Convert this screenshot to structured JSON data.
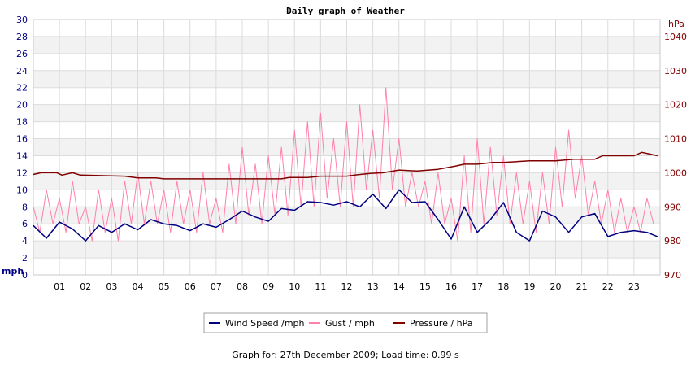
{
  "chart_data": {
    "type": "line",
    "title": "Daily graph of Weather",
    "left_axis": {
      "unit": "mph",
      "ylim": [
        0,
        30
      ],
      "ticks": [
        0,
        2,
        4,
        6,
        8,
        10,
        12,
        14,
        16,
        18,
        20,
        22,
        24,
        26,
        28,
        30
      ]
    },
    "right_axis": {
      "unit": "hPa",
      "ylim": [
        970,
        1045
      ],
      "ticks": [
        970,
        980,
        990,
        1000,
        1010,
        1020,
        1030,
        1040
      ]
    },
    "x_axis": {
      "unit": "hour",
      "xlim": [
        0,
        24
      ],
      "tick_labels": [
        "01",
        "02",
        "03",
        "04",
        "05",
        "06",
        "07",
        "08",
        "09",
        "10",
        "11",
        "12",
        "13",
        "14",
        "15",
        "16",
        "17",
        "18",
        "19",
        "20",
        "21",
        "22",
        "23"
      ]
    },
    "grid": true,
    "legend_position": "bottom-center",
    "series": [
      {
        "name": "Wind Speed /mph",
        "axis": "left",
        "color": "#000080",
        "x": [
          0,
          0.5,
          1,
          1.5,
          2,
          2.5,
          3,
          3.5,
          4,
          4.5,
          5,
          5.5,
          6,
          6.5,
          7,
          7.5,
          8,
          8.5,
          9,
          9.5,
          10,
          10.5,
          11,
          11.5,
          12,
          12.5,
          13,
          13.5,
          14,
          14.5,
          15,
          15.5,
          16,
          16.5,
          17,
          17.5,
          18,
          18.5,
          19,
          19.5,
          20,
          20.5,
          21,
          21.5,
          22,
          22.5,
          23,
          23.5,
          23.9
        ],
        "values": [
          5.8,
          4.3,
          6.2,
          5.4,
          4.0,
          5.8,
          5.0,
          6.0,
          5.3,
          6.5,
          6.0,
          5.8,
          5.2,
          6.0,
          5.6,
          6.5,
          7.5,
          6.8,
          6.3,
          7.8,
          7.6,
          8.6,
          8.5,
          8.2,
          8.6,
          8.0,
          9.5,
          7.8,
          10.0,
          8.5,
          8.6,
          6.5,
          4.2,
          8.0,
          5.0,
          6.5,
          8.5,
          5.0,
          4.0,
          7.5,
          6.8,
          5.0,
          6.8,
          7.2,
          4.5,
          5.0,
          5.2,
          5.0,
          4.5
        ]
      },
      {
        "name": "Gust / mph",
        "axis": "left",
        "color": "#ff80a8",
        "x": [
          0,
          0.25,
          0.5,
          0.75,
          1,
          1.25,
          1.5,
          1.75,
          2,
          2.25,
          2.5,
          2.75,
          3,
          3.25,
          3.5,
          3.75,
          4,
          4.25,
          4.5,
          4.75,
          5,
          5.25,
          5.5,
          5.75,
          6,
          6.25,
          6.5,
          6.75,
          7,
          7.25,
          7.5,
          7.75,
          8,
          8.25,
          8.5,
          8.75,
          9,
          9.25,
          9.5,
          9.75,
          10,
          10.25,
          10.5,
          10.75,
          11,
          11.25,
          11.5,
          11.75,
          12,
          12.25,
          12.5,
          12.75,
          13,
          13.25,
          13.5,
          13.75,
          14,
          14.25,
          14.5,
          14.75,
          15,
          15.25,
          15.5,
          15.75,
          16,
          16.25,
          16.5,
          16.75,
          17,
          17.25,
          17.5,
          17.75,
          18,
          18.25,
          18.5,
          18.75,
          19,
          19.25,
          19.5,
          19.75,
          20,
          20.25,
          20.5,
          20.75,
          21,
          21.25,
          21.5,
          21.75,
          22,
          22.25,
          22.5,
          22.75,
          23,
          23.25,
          23.5,
          23.75
        ],
        "values": [
          8,
          5,
          10,
          6,
          9,
          5,
          11,
          6,
          8,
          4,
          10,
          5,
          9,
          4,
          11,
          6,
          12,
          6,
          11,
          6,
          10,
          5,
          11,
          6,
          10,
          5,
          12,
          6,
          9,
          5,
          13,
          6,
          15,
          7,
          13,
          6,
          14,
          7,
          15,
          7,
          17,
          8,
          18,
          8,
          19,
          9,
          16,
          8,
          18,
          8,
          20,
          10,
          17,
          9,
          22,
          10,
          16,
          8,
          12,
          8,
          11,
          6,
          12,
          6,
          9,
          4,
          14,
          5,
          16,
          6,
          15,
          7,
          14,
          6,
          12,
          6,
          11,
          5,
          12,
          6,
          15,
          8,
          17,
          9,
          14,
          7,
          11,
          6,
          10,
          5,
          9,
          5,
          8,
          5,
          9,
          6
        ]
      },
      {
        "name": "Pressure / hPa",
        "axis": "right",
        "color": "#800000",
        "x": [
          0,
          0.3,
          0.9,
          1.1,
          1.5,
          1.8,
          3.5,
          4.0,
          4.7,
          5.0,
          8.0,
          9.5,
          9.8,
          10.5,
          11.0,
          12.0,
          12.4,
          12.9,
          13.4,
          13.7,
          14.0,
          14.7,
          15.5,
          16.2,
          16.5,
          17.0,
          17.6,
          18.0,
          19.0,
          20.0,
          20.7,
          21.0,
          21.5,
          21.8,
          22.0,
          23.0,
          23.3,
          23.6,
          23.9
        ],
        "values": [
          999.5,
          1000.0,
          1000.0,
          999.3,
          1000.0,
          999.3,
          999.0,
          998.5,
          998.5,
          998.2,
          998.2,
          998.2,
          998.6,
          998.6,
          999.0,
          999.0,
          999.4,
          999.8,
          1000.0,
          1000.4,
          1000.8,
          1000.5,
          1001.0,
          1002.0,
          1002.5,
          1002.5,
          1003.0,
          1003.0,
          1003.5,
          1003.5,
          1004.0,
          1004.0,
          1004.0,
          1005.0,
          1005.0,
          1005.0,
          1006.0,
          1005.5,
          1005.0
        ]
      }
    ]
  },
  "footer": {
    "text": "Graph for: 27th December 2009; Load time: 0.99 s"
  }
}
